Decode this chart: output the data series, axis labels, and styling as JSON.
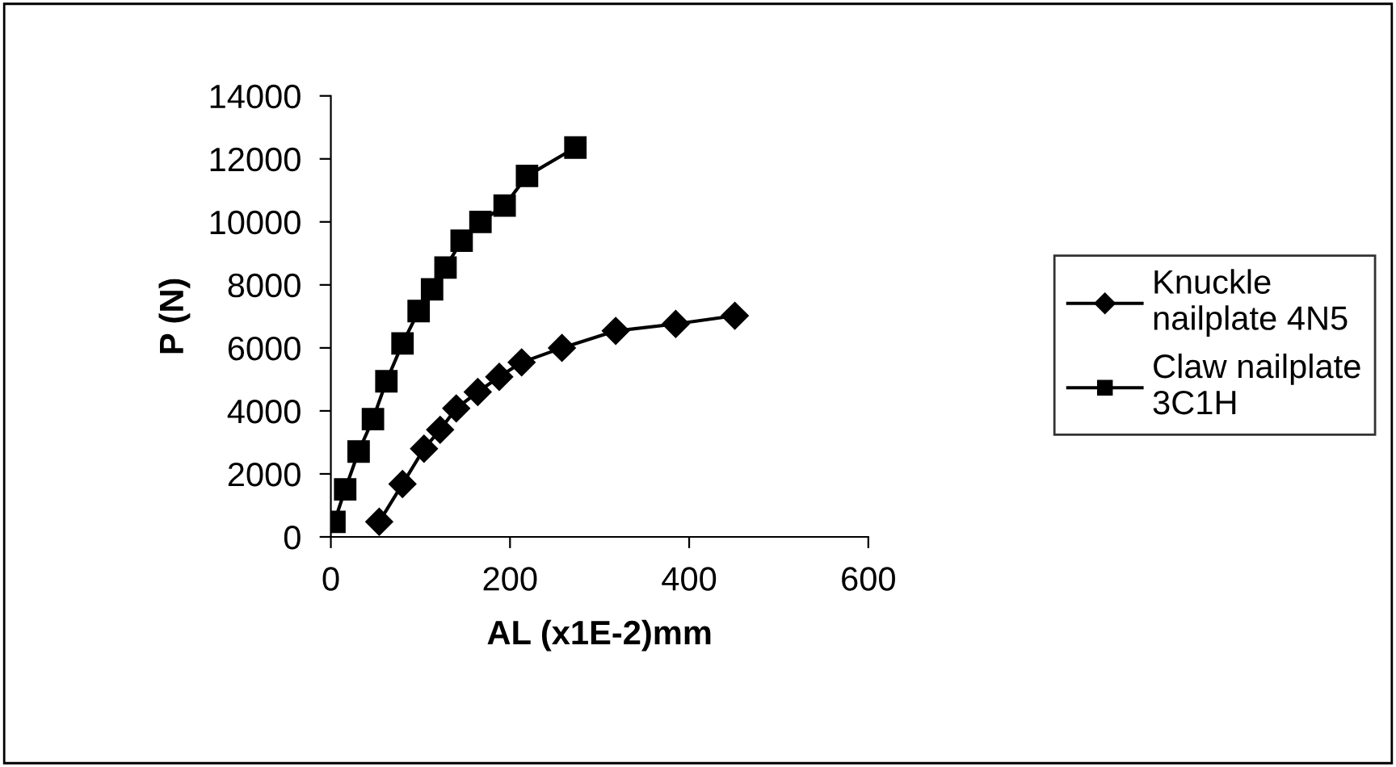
{
  "chart_data": {
    "type": "line",
    "xlabel": "AL (x1E-2)mm",
    "ylabel": "P (N)",
    "xlim": [
      0,
      600
    ],
    "xticks": [
      0,
      200,
      400,
      600
    ],
    "ylim": [
      0,
      14000
    ],
    "yticks": [
      0,
      2000,
      4000,
      6000,
      8000,
      10000,
      12000,
      14000
    ],
    "grid": false,
    "legend": "right",
    "line_style": "solid",
    "series": [
      {
        "name": "Knuckle nailplate 4N5",
        "color": "#000000",
        "marker": "diamond",
        "x": [
          54,
          80,
          104,
          122,
          140,
          164,
          188,
          213,
          258,
          318,
          385,
          451
        ],
        "values": [
          480,
          1680,
          2800,
          3400,
          4080,
          4600,
          5080,
          5540,
          6000,
          6540,
          6760,
          7020
        ]
      },
      {
        "name": "Claw nailplate 3C1H",
        "color": "#000000",
        "marker": "square",
        "x": [
          4,
          16,
          31,
          47,
          62,
          80,
          98,
          113,
          128,
          146,
          167,
          194,
          219,
          273
        ],
        "values": [
          480,
          1510,
          2710,
          3740,
          4940,
          6140,
          7170,
          7860,
          8550,
          9400,
          10000,
          10520,
          11460,
          12360
        ]
      }
    ]
  }
}
